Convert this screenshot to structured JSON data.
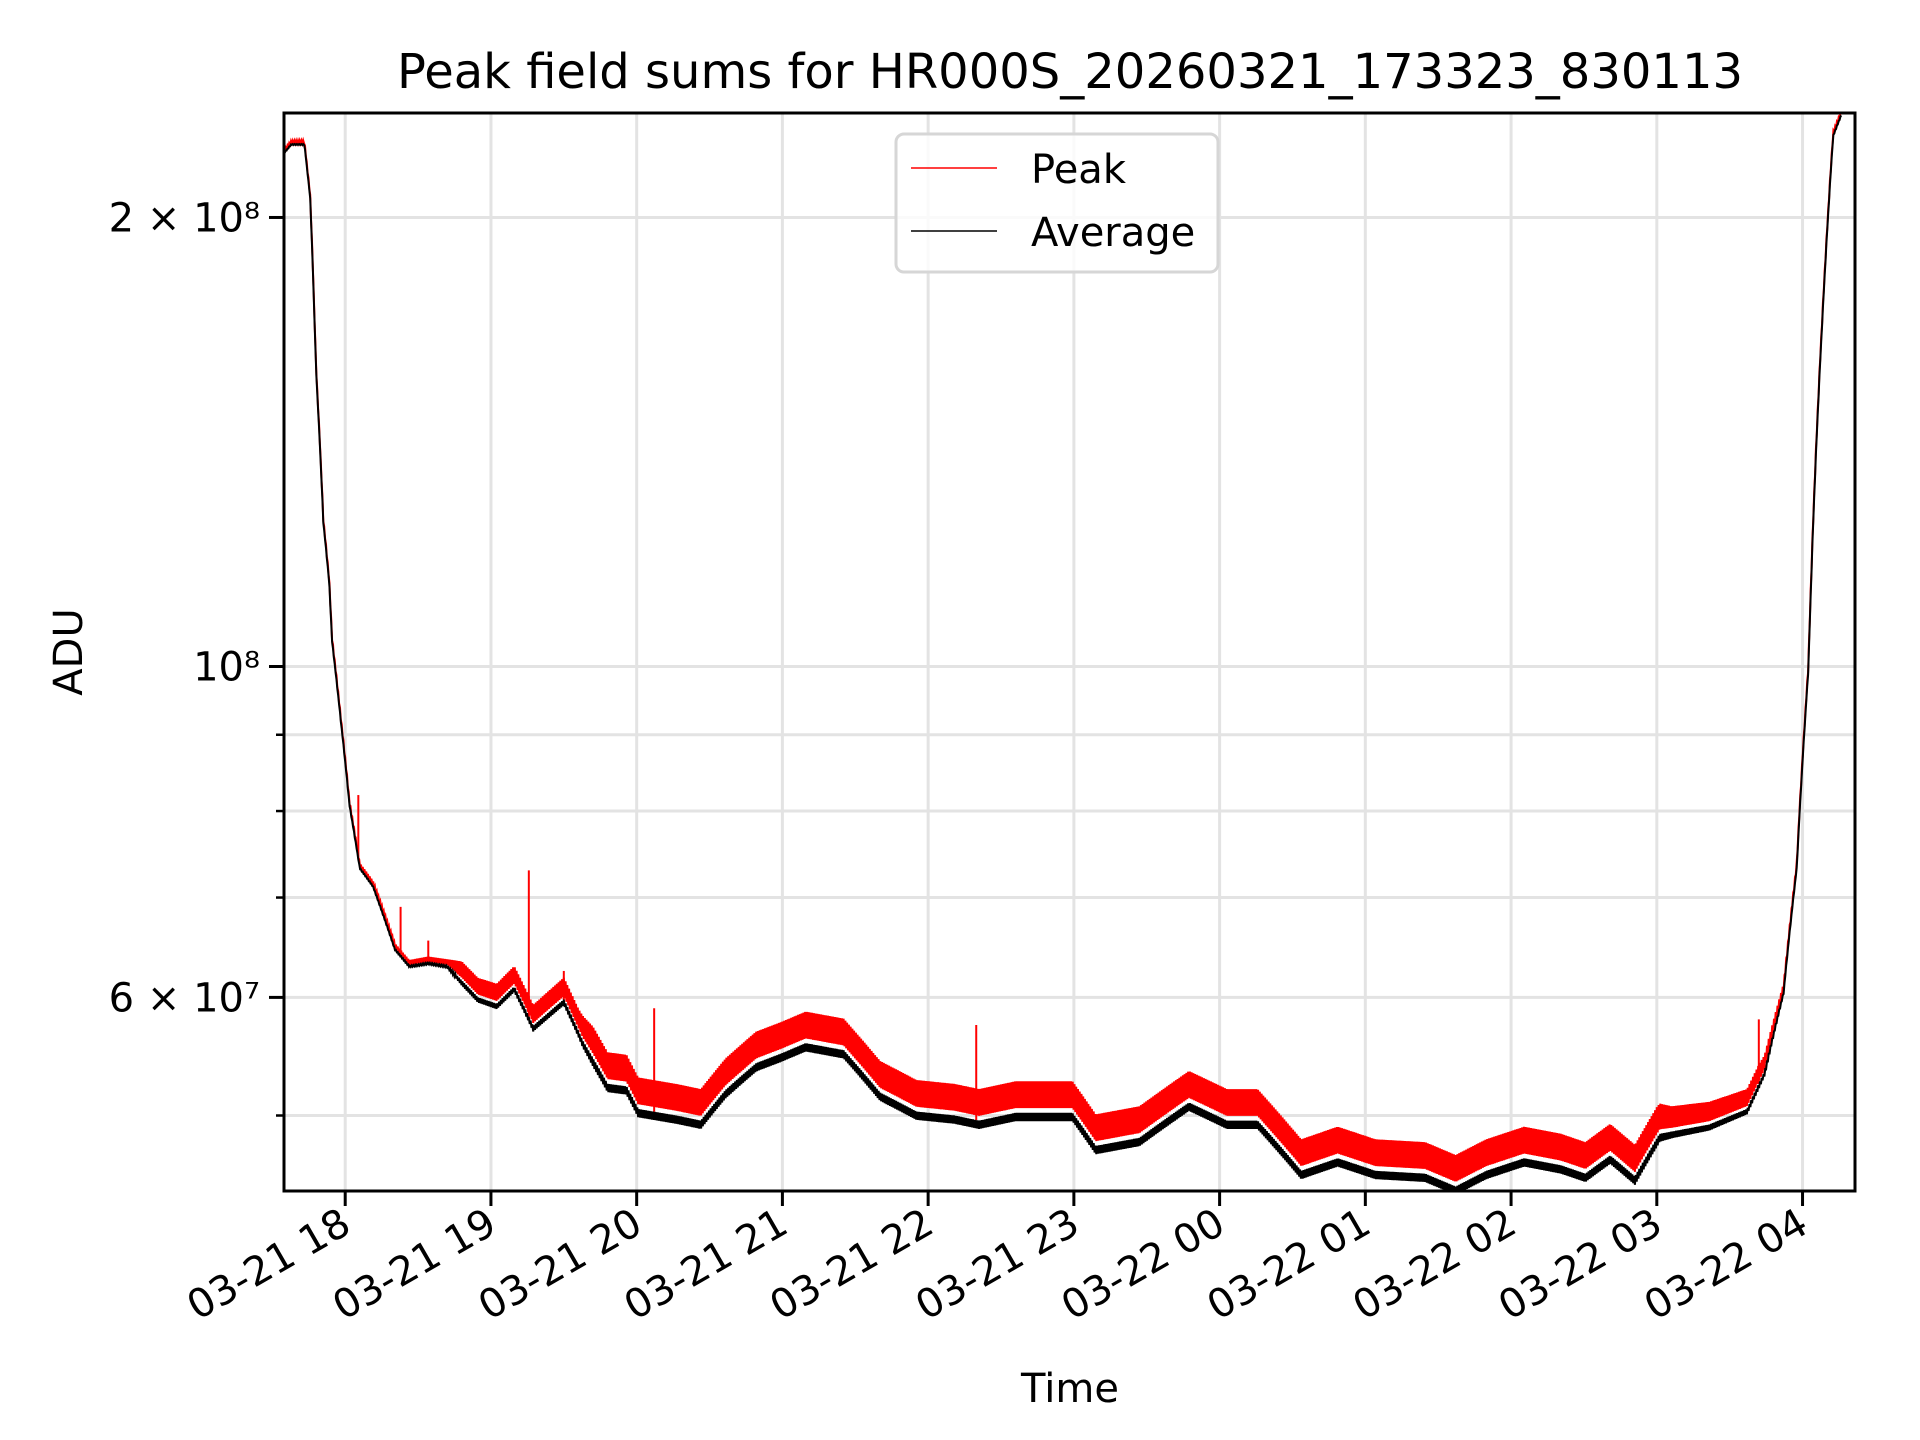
{
  "chart_data": {
    "type": "line",
    "title": "Peak field sums for HR000S_20260321_173323_830113",
    "xlabel": "Time",
    "ylabel": "ADU",
    "yscale": "log",
    "x_units": "hours since 03-21 00:00",
    "xlim": [
      17.58,
      28.36
    ],
    "ylim": [
      44500000,
      235000000
    ],
    "grid": true,
    "legend_placement": "upper-center",
    "x_ticks": [
      {
        "value": 18,
        "label": "03-21 18"
      },
      {
        "value": 19,
        "label": "03-21 19"
      },
      {
        "value": 20,
        "label": "03-21 20"
      },
      {
        "value": 21,
        "label": "03-21 21"
      },
      {
        "value": 22,
        "label": "03-21 22"
      },
      {
        "value": 23,
        "label": "03-21 23"
      },
      {
        "value": 24,
        "label": "03-22 00"
      },
      {
        "value": 25,
        "label": "03-22 01"
      },
      {
        "value": 26,
        "label": "03-22 02"
      },
      {
        "value": 27,
        "label": "03-22 03"
      },
      {
        "value": 28,
        "label": "03-22 04"
      }
    ],
    "y_ticks_major": [
      {
        "value": 200000000,
        "label": "2 × 10⁸"
      },
      {
        "value": 100000000,
        "label": "10⁸"
      },
      {
        "value": 60000000,
        "label": "6 × 10⁷"
      }
    ],
    "y_ticks_minor": [
      90000000,
      80000000,
      70000000,
      50000000
    ],
    "series": [
      {
        "name": "Peak",
        "color": "#ff0000",
        "band_fraction": [
          [
            17.58,
            0.005
          ],
          [
            18.7,
            0.01
          ],
          [
            18.8,
            0.03
          ],
          [
            19.6,
            0.035
          ],
          [
            19.7,
            0.05
          ],
          [
            27.0,
            0.05
          ],
          [
            27.1,
            0.04
          ],
          [
            27.7,
            0.03
          ],
          [
            27.9,
            0.01
          ],
          [
            28.36,
            0.005
          ]
        ],
        "spikes": [
          [
            18.09,
            82000000
          ],
          [
            18.38,
            69000000
          ],
          [
            18.57,
            65500000
          ],
          [
            19.26,
            73000000
          ],
          [
            19.5,
            62500000
          ],
          [
            20.12,
            59000000
          ],
          [
            22.33,
            57500000
          ],
          [
            27.7,
            58000000
          ]
        ]
      },
      {
        "name": "Average",
        "color": "#000000",
        "points": [
          [
            17.58,
            221000000
          ],
          [
            17.63,
            224000000
          ],
          [
            17.72,
            224000000
          ],
          [
            17.76,
            206000000
          ],
          [
            17.8,
            158000000
          ],
          [
            17.85,
            125000000
          ],
          [
            17.89,
            114000000
          ],
          [
            17.91,
            104000000
          ],
          [
            17.97,
            92000000
          ],
          [
            18.03,
            80700000
          ],
          [
            18.1,
            73300000
          ],
          [
            18.19,
            71300000
          ],
          [
            18.34,
            64700000
          ],
          [
            18.44,
            63000000
          ],
          [
            18.57,
            63300000
          ],
          [
            18.7,
            63000000
          ],
          [
            18.91,
            60000000
          ],
          [
            19.04,
            59400000
          ],
          [
            19.16,
            61000000
          ],
          [
            19.29,
            57400000
          ],
          [
            19.5,
            59800000
          ],
          [
            19.63,
            56100000
          ],
          [
            19.8,
            52500000
          ],
          [
            19.93,
            52300000
          ],
          [
            20.01,
            50500000
          ],
          [
            20.27,
            50000000
          ],
          [
            20.44,
            49600000
          ],
          [
            20.61,
            52000000
          ],
          [
            20.82,
            54200000
          ],
          [
            20.99,
            55000000
          ],
          [
            21.16,
            55900000
          ],
          [
            21.42,
            55300000
          ],
          [
            21.67,
            51800000
          ],
          [
            21.92,
            50300000
          ],
          [
            22.18,
            50000000
          ],
          [
            22.35,
            49600000
          ],
          [
            22.6,
            50200000
          ],
          [
            22.99,
            50200000
          ],
          [
            23.15,
            47700000
          ],
          [
            23.45,
            48300000
          ],
          [
            23.79,
            51000000
          ],
          [
            24.05,
            49600000
          ],
          [
            24.26,
            49600000
          ],
          [
            24.56,
            45900000
          ],
          [
            24.81,
            46800000
          ],
          [
            25.07,
            45900000
          ],
          [
            25.41,
            45700000
          ],
          [
            25.62,
            44800000
          ],
          [
            25.83,
            45900000
          ],
          [
            26.09,
            46800000
          ],
          [
            26.34,
            46300000
          ],
          [
            26.51,
            45700000
          ],
          [
            26.68,
            47000000
          ],
          [
            26.85,
            45500000
          ],
          [
            27.02,
            48600000
          ],
          [
            27.36,
            49300000
          ],
          [
            27.62,
            50500000
          ],
          [
            27.74,
            53500000
          ],
          [
            27.87,
            60500000
          ],
          [
            27.96,
            73300000
          ],
          [
            28.04,
            99600000
          ],
          [
            28.08,
            130000000
          ],
          [
            28.14,
            174000000
          ],
          [
            28.21,
            227000000
          ],
          [
            28.27,
            235000000
          ]
        ]
      }
    ]
  }
}
